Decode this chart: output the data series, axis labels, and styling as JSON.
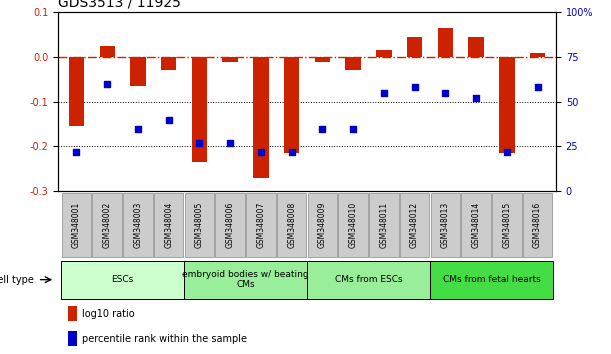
{
  "title": "GDS3513 / 11925",
  "samples": [
    "GSM348001",
    "GSM348002",
    "GSM348003",
    "GSM348004",
    "GSM348005",
    "GSM348006",
    "GSM348007",
    "GSM348008",
    "GSM348009",
    "GSM348010",
    "GSM348011",
    "GSM348012",
    "GSM348013",
    "GSM348014",
    "GSM348015",
    "GSM348016"
  ],
  "log10_ratio": [
    -0.155,
    0.025,
    -0.065,
    -0.03,
    -0.235,
    -0.01,
    -0.27,
    -0.215,
    -0.01,
    -0.03,
    0.015,
    0.045,
    0.065,
    0.045,
    -0.215,
    0.01
  ],
  "percentile_rank": [
    22,
    60,
    35,
    40,
    27,
    27,
    22,
    22,
    35,
    35,
    55,
    58,
    55,
    52,
    22,
    58
  ],
  "bar_color": "#cc2200",
  "dot_color": "#0000cc",
  "ylim_left": [
    -0.3,
    0.1
  ],
  "ylim_right": [
    0,
    100
  ],
  "right_yticks": [
    0,
    25,
    50,
    75,
    100
  ],
  "right_yticklabels": [
    "0",
    "25",
    "50",
    "75",
    "100%"
  ],
  "left_yticks": [
    -0.3,
    -0.2,
    -0.1,
    0.0,
    0.1
  ],
  "dotted_lines": [
    -0.1,
    -0.2
  ],
  "cell_types": [
    {
      "label": "ESCs",
      "start": 0,
      "end": 4,
      "color": "#ccffcc"
    },
    {
      "label": "embryoid bodies w/ beating\nCMs",
      "start": 4,
      "end": 8,
      "color": "#99ee99"
    },
    {
      "label": "CMs from ESCs",
      "start": 8,
      "end": 12,
      "color": "#99ee99"
    },
    {
      "label": "CMs from fetal hearts",
      "start": 12,
      "end": 16,
      "color": "#44dd44"
    }
  ],
  "legend_items": [
    {
      "label": "log10 ratio",
      "color": "#cc2200"
    },
    {
      "label": "percentile rank within the sample",
      "color": "#0000cc"
    }
  ],
  "cell_type_label": "cell type",
  "background_color": "#ffffff",
  "title_fontsize": 10,
  "tick_fontsize": 7,
  "bar_width": 0.5,
  "sample_box_color": "#cccccc",
  "sample_box_edge": "#888888"
}
